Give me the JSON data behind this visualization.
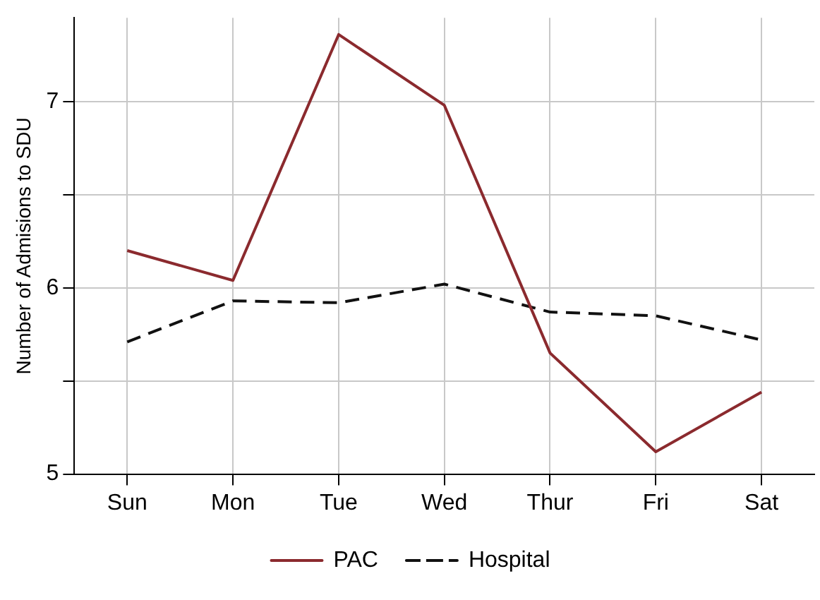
{
  "chart_data": {
    "type": "line",
    "ylabel": "Number of Admisions to SDU",
    "categories": [
      "Sun",
      "Mon",
      "Tue",
      "Wed",
      "Thur",
      "Fri",
      "Sat"
    ],
    "series": [
      {
        "name": "PAC",
        "color": "#8b2a2e",
        "values": [
          6.2,
          6.04,
          7.36,
          6.98,
          5.65,
          5.12,
          5.44
        ],
        "line_style": "solid"
      },
      {
        "name": "Hospital",
        "color": "#111111",
        "values": [
          5.71,
          5.93,
          5.92,
          6.02,
          5.87,
          5.85,
          5.72
        ],
        "line_style": "dashed"
      }
    ],
    "ylim": [
      5,
      7.45
    ],
    "yticks": [
      5,
      {
        "value": 5.5,
        "label": null
      },
      6,
      {
        "value": 6.5,
        "label": null
      },
      7
    ],
    "grid": true,
    "legend": "bottom",
    "marker": "none"
  }
}
